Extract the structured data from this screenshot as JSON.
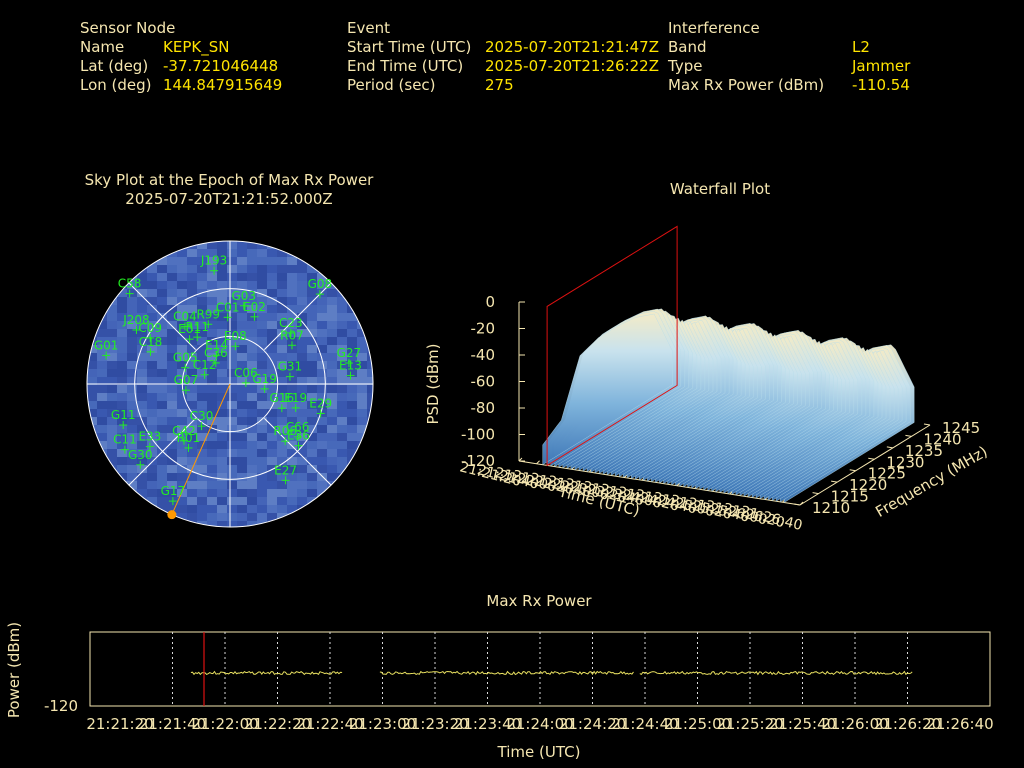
{
  "header": {
    "sensor": {
      "title": "Sensor Node",
      "name_label": "Name",
      "name": "KEPK_SN",
      "lat_label": "Lat (deg)",
      "lat": "-37.721046448",
      "lon_label": "Lon (deg)",
      "lon": "144.847915649"
    },
    "event": {
      "title": "Event",
      "start_label": "Start Time (UTC)",
      "start": "2025-07-20T21:21:47Z",
      "end_label": "End Time (UTC)",
      "end": "2025-07-20T21:26:22Z",
      "period_label": "Period (sec)",
      "period": "275"
    },
    "interference": {
      "title": "Interference",
      "band_label": "Band",
      "band": "L2",
      "type_label": "Type",
      "type": "Jammer",
      "maxrx_label": "Max Rx Power (dBm)",
      "maxrx": "-110.54"
    }
  },
  "colors": {
    "label": "#f5e6b0",
    "value": "#ffe400",
    "satellite": "#22ee22",
    "sky_fill": "#3a58b0",
    "marker": "#ff9900",
    "red_line": "#dd1111",
    "power_trace": "#e8e060"
  },
  "chart_data": [
    {
      "type": "scatter",
      "title": "Sky Plot at the Epoch of Max Rx Power",
      "subtitle": "2025-07-20T21:21:52.000Z",
      "projection": "polar",
      "elevation_rings_deg": [
        0,
        30,
        60
      ],
      "satellites": [
        {
          "id": "J193",
          "az": 352,
          "el": 18
        },
        {
          "id": "G03",
          "az": 10,
          "el": 40
        },
        {
          "id": "C58",
          "az": 312,
          "el": 5
        },
        {
          "id": "G08",
          "az": 45,
          "el": 10
        },
        {
          "id": "C01",
          "az": 358,
          "el": 48
        },
        {
          "id": "E02",
          "az": 20,
          "el": 45
        },
        {
          "id": "R99",
          "az": 340,
          "el": 50
        },
        {
          "id": "C23",
          "az": 50,
          "el": 40
        },
        {
          "id": "R07",
          "az": 58,
          "el": 44
        },
        {
          "id": "R11",
          "az": 325,
          "el": 54
        },
        {
          "id": "C04",
          "az": 322,
          "el": 44
        },
        {
          "id": "E01",
          "az": 318,
          "el": 52
        },
        {
          "id": "J208",
          "az": 300,
          "el": 22
        },
        {
          "id": "C09",
          "az": 300,
          "el": 32
        },
        {
          "id": "C18",
          "az": 292,
          "el": 36
        },
        {
          "id": "G01",
          "az": 283,
          "el": 10
        },
        {
          "id": "C36",
          "az": 326,
          "el": 74
        },
        {
          "id": "E08",
          "az": 8,
          "el": 66
        },
        {
          "id": "E14",
          "az": 335,
          "el": 70
        },
        {
          "id": "G27",
          "az": 80,
          "el": 14
        },
        {
          "id": "E13",
          "az": 86,
          "el": 14
        },
        {
          "id": "G31",
          "az": 83,
          "el": 52
        },
        {
          "id": "G05",
          "az": 290,
          "el": 60
        },
        {
          "id": "C12",
          "az": 290,
          "el": 73
        },
        {
          "id": "C06",
          "az": 86,
          "el": 80
        },
        {
          "id": "G19",
          "az": 98,
          "el": 68
        },
        {
          "id": "G07",
          "az": 262,
          "el": 62
        },
        {
          "id": "E19",
          "az": 110,
          "el": 46
        },
        {
          "id": "G16",
          "az": 115,
          "el": 54
        },
        {
          "id": "E29",
          "az": 108,
          "el": 30
        },
        {
          "id": "C30",
          "az": 214,
          "el": 58
        },
        {
          "id": "C66",
          "az": 128,
          "el": 36
        },
        {
          "id": "R06",
          "az": 136,
          "el": 40
        },
        {
          "id": "E36",
          "az": 132,
          "el": 32
        },
        {
          "id": "G11",
          "az": 249,
          "el": 18
        },
        {
          "id": "C42",
          "az": 219,
          "el": 44
        },
        {
          "id": "R01",
          "az": 213,
          "el": 42
        },
        {
          "id": "E33",
          "az": 232,
          "el": 26
        },
        {
          "id": "C11",
          "az": 238,
          "el": 12
        },
        {
          "id": "G30",
          "az": 228,
          "el": 14
        },
        {
          "id": "E27",
          "az": 150,
          "el": 20
        },
        {
          "id": "G17",
          "az": 206,
          "el": 8
        }
      ],
      "max_rx_direction": {
        "az": 204,
        "el": 0
      }
    },
    {
      "type": "area",
      "title": "Waterfall Plot",
      "xlabel": "Time (UTC)",
      "ylabel": "Frequency (MHz)",
      "zlabel": "PSD (dBm)",
      "zlim": [
        -120,
        0
      ],
      "z_ticks": [
        0,
        -20,
        -40,
        -60,
        -80,
        -100,
        -120
      ],
      "frequency_ticks": [
        1210,
        1215,
        1220,
        1225,
        1230,
        1235,
        1240,
        1245
      ],
      "frequency_profile_mhz": [
        1210,
        1215,
        1220,
        1225,
        1230,
        1235,
        1240,
        1245
      ],
      "frequency_profile_psd": [
        -105,
        -95,
        -55,
        -50,
        -50,
        -52,
        -58,
        -95
      ],
      "time_ticks": [
        "21:21:20",
        "21:21:40",
        "21:22:00",
        "21:22:20",
        "21:22:40",
        "21:23:00",
        "21:23:20",
        "21:23:40",
        "21:24:00",
        "21:24:20",
        "21:24:40",
        "21:25:00",
        "21:25:20",
        "21:25:40",
        "21:26:00",
        "21:26:20",
        "21:26:40"
      ],
      "marker_time": "21:21:52"
    },
    {
      "type": "line",
      "title": "Max Rx Power",
      "xlabel": "Time (UTC)",
      "ylabel": "Power (dBm)",
      "y_tick": "-120",
      "x_ticks": [
        "21:21:20",
        "21:21:40",
        "21:22:00",
        "21:22:20",
        "21:22:40",
        "21:23:00",
        "21:23:20",
        "21:23:40",
        "21:24:00",
        "21:24:20",
        "21:24:40",
        "21:25:00",
        "21:25:20",
        "21:25:40",
        "21:26:00",
        "21:26:20",
        "21:26:40"
      ],
      "x_start_sec": 0,
      "x_end_sec": 320,
      "marker_time": "21:21:52",
      "segments": [
        {
          "start": "21:21:47",
          "end": "21:22:45"
        },
        {
          "start": "21:22:59",
          "end": "21:24:36"
        },
        {
          "start": "21:24:38",
          "end": "21:26:22"
        }
      ],
      "level_dbm": -110.54
    }
  ]
}
